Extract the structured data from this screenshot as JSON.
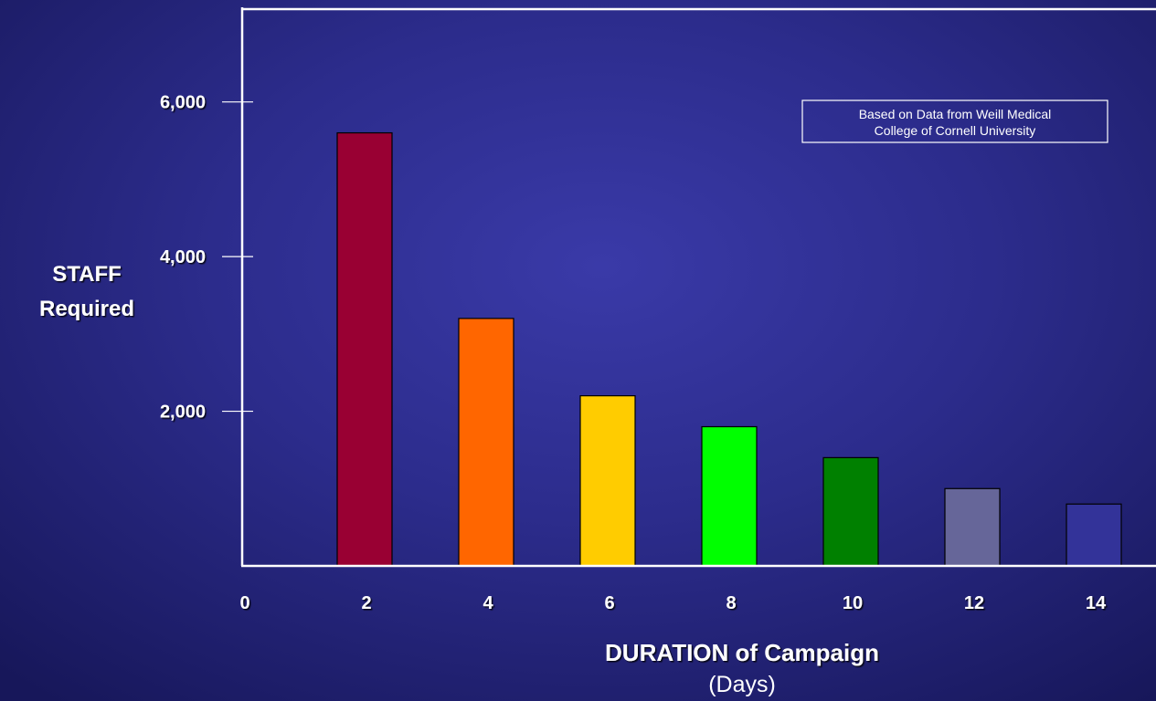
{
  "chart_data": {
    "type": "bar",
    "x_ticks": [
      "0",
      "2",
      "4",
      "6",
      "8",
      "10",
      "12",
      "14"
    ],
    "categories": [
      "2",
      "4",
      "6",
      "8",
      "10",
      "12",
      "14"
    ],
    "values": [
      5600,
      3200,
      2200,
      1800,
      1400,
      1000,
      800
    ],
    "colors": [
      "#990033",
      "#ff6600",
      "#ffcc00",
      "#00ff00",
      "#008000",
      "#666699",
      "#333399"
    ],
    "ylim": [
      0,
      7200
    ],
    "y_ticks": [
      2000,
      4000,
      6000
    ],
    "y_tick_labels": [
      "2,000",
      "4,000",
      "6,000"
    ],
    "ylabel_lines": [
      "STAFF",
      "Required"
    ],
    "xlabel": "DURATION of Campaign",
    "xlabel_sub": "(Days)",
    "annotation_lines": [
      "Based on Data from Weill Medical",
      "College of Cornell University"
    ],
    "grid": false
  }
}
